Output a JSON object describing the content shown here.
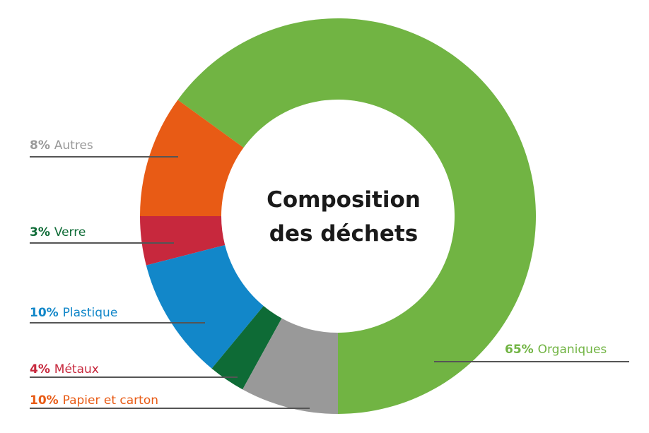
{
  "chart_data": {
    "type": "pie",
    "variant": "donut",
    "title_lines": [
      "Composition",
      "des déchets"
    ],
    "unit": "%",
    "slices": [
      {
        "label": "Organiques",
        "value": 65,
        "color": "#71b443"
      },
      {
        "label": "Papier et carton",
        "value": 10,
        "color": "#e85b15"
      },
      {
        "label": "Métaux",
        "value": 4,
        "color": "#c7283d"
      },
      {
        "label": "Plastique",
        "value": 10,
        "color": "#1287c9"
      },
      {
        "label": "Verre",
        "value": 3,
        "color": "#0e6b36"
      },
      {
        "label": "Autres",
        "value": 8,
        "color": "#999999"
      }
    ],
    "leader_line_color": "#555555",
    "legend": "leader-lines"
  }
}
